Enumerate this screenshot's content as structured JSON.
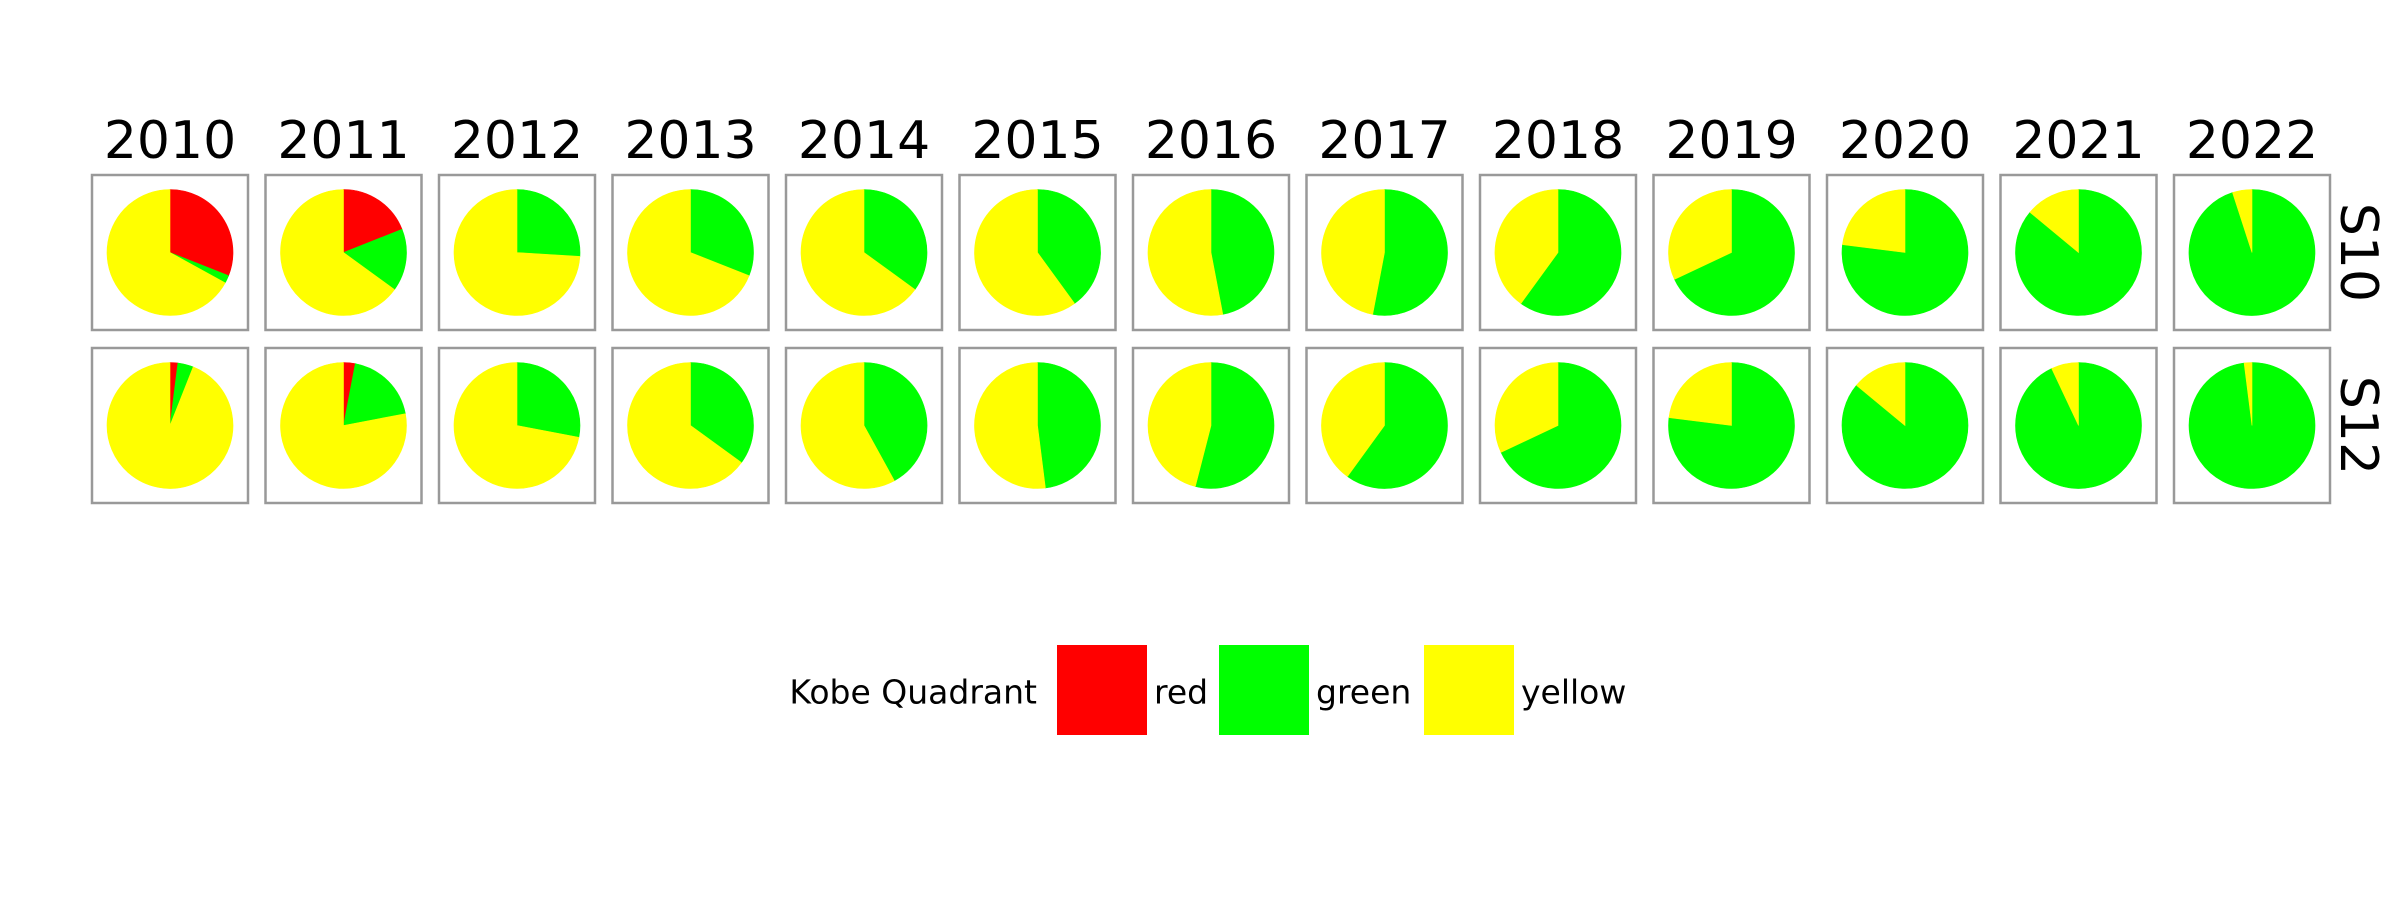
{
  "chart_data": {
    "type": "pie",
    "layout": "facet-grid",
    "columns": [
      "2010",
      "2011",
      "2012",
      "2013",
      "2014",
      "2015",
      "2016",
      "2017",
      "2018",
      "2019",
      "2020",
      "2021",
      "2022"
    ],
    "rows": [
      "S10",
      "S12"
    ],
    "category_order": [
      "red",
      "green",
      "yellow"
    ],
    "colors": {
      "red": "#ff0000",
      "green": "#00ff00",
      "yellow": "#ffff00"
    },
    "panels": {
      "S10": [
        {
          "year": "2010",
          "red": 31,
          "green": 2,
          "yellow": 67
        },
        {
          "year": "2011",
          "red": 19,
          "green": 16,
          "yellow": 65
        },
        {
          "year": "2012",
          "red": 0,
          "green": 26,
          "yellow": 74
        },
        {
          "year": "2013",
          "red": 0,
          "green": 31,
          "yellow": 69
        },
        {
          "year": "2014",
          "red": 0,
          "green": 35,
          "yellow": 65
        },
        {
          "year": "2015",
          "red": 0,
          "green": 40,
          "yellow": 60
        },
        {
          "year": "2016",
          "red": 0,
          "green": 47,
          "yellow": 53
        },
        {
          "year": "2017",
          "red": 0,
          "green": 53,
          "yellow": 47
        },
        {
          "year": "2018",
          "red": 0,
          "green": 60,
          "yellow": 40
        },
        {
          "year": "2019",
          "red": 0,
          "green": 68,
          "yellow": 32
        },
        {
          "year": "2020",
          "red": 0,
          "green": 77,
          "yellow": 23
        },
        {
          "year": "2021",
          "red": 0,
          "green": 86,
          "yellow": 14
        },
        {
          "year": "2022",
          "red": 0,
          "green": 95,
          "yellow": 5
        }
      ],
      "S12": [
        {
          "year": "2010",
          "red": 2,
          "green": 4,
          "yellow": 94
        },
        {
          "year": "2011",
          "red": 3,
          "green": 19,
          "yellow": 78
        },
        {
          "year": "2012",
          "red": 0,
          "green": 28,
          "yellow": 72
        },
        {
          "year": "2013",
          "red": 0,
          "green": 35,
          "yellow": 65
        },
        {
          "year": "2014",
          "red": 0,
          "green": 42,
          "yellow": 58
        },
        {
          "year": "2015",
          "red": 0,
          "green": 48,
          "yellow": 52
        },
        {
          "year": "2016",
          "red": 0,
          "green": 54,
          "yellow": 46
        },
        {
          "year": "2017",
          "red": 0,
          "green": 60,
          "yellow": 40
        },
        {
          "year": "2018",
          "red": 0,
          "green": 68,
          "yellow": 32
        },
        {
          "year": "2019",
          "red": 0,
          "green": 77,
          "yellow": 23
        },
        {
          "year": "2020",
          "red": 0,
          "green": 86,
          "yellow": 14
        },
        {
          "year": "2021",
          "red": 0,
          "green": 93,
          "yellow": 7
        },
        {
          "year": "2022",
          "red": 0,
          "green": 98,
          "yellow": 2
        }
      ]
    },
    "legend": {
      "title": "Kobe Quadrant",
      "entries": [
        "red",
        "green",
        "yellow"
      ],
      "placement": "bottom"
    }
  }
}
